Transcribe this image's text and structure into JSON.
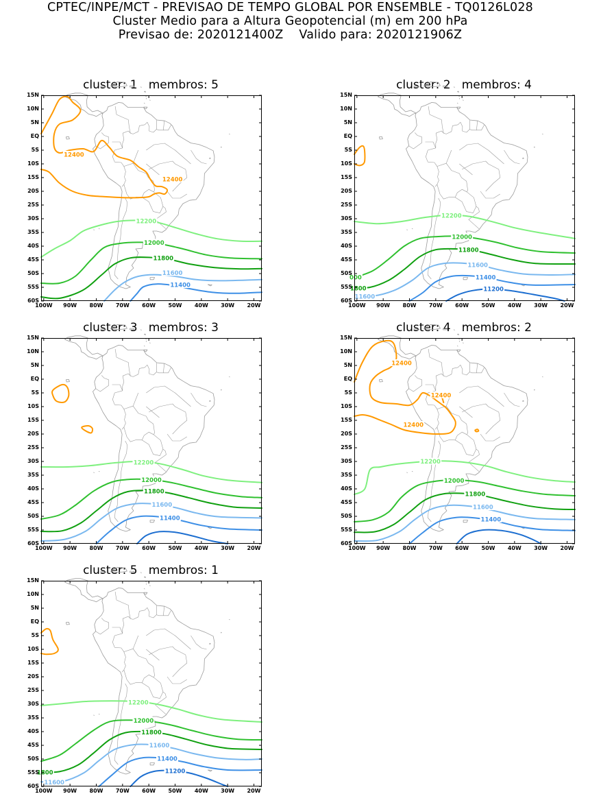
{
  "header": {
    "line1": "CPTEC/INPE/MCT - PREVISAO DE TEMPO GLOBAL POR ENSEMBLE - TQ0126L028",
    "line2": "Cluster Medio para a Altura Geopotencial (m) em 200 hPa",
    "line3": "Previsao de: 2020121400Z    Valido para: 2020121906Z"
  },
  "axes": {
    "lat_labels": [
      "15N",
      "10N",
      "5N",
      "EQ",
      "5S",
      "10S",
      "15S",
      "20S",
      "25S",
      "30S",
      "35S",
      "40S",
      "45S",
      "50S",
      "55S",
      "60S"
    ],
    "lon_labels": [
      "100W",
      "90W",
      "80W",
      "70W",
      "60W",
      "50W",
      "40W",
      "30W",
      "20W"
    ]
  },
  "colors": {
    "c12400": "#ff9900",
    "c12200": "#7ef07e",
    "c12000": "#2fc02f",
    "c11800": "#10a010",
    "c11600": "#7ab8ef",
    "c11400": "#3d8fe6",
    "c11200": "#1c6ed0",
    "coast": "#9a9a9a"
  },
  "panels": [
    {
      "title": "cluster: 1   membros: 5",
      "labels": [
        "12400",
        "12400",
        "12200",
        "12000",
        "11800",
        "11600",
        "11400"
      ]
    },
    {
      "title": "cluster: 2   membros: 4",
      "labels": [
        "12200",
        "12000",
        "11800",
        "11600",
        "11400",
        "11200",
        "000",
        "1800",
        "11600"
      ]
    },
    {
      "title": "cluster: 3   membros: 3",
      "labels": [
        "12200",
        "12000",
        "11800",
        "11600",
        "11400"
      ]
    },
    {
      "title": "cluster: 4   membros: 2",
      "labels": [
        "12400",
        "12400",
        "12400",
        "12200",
        "12000",
        "11800",
        "11600",
        "11400"
      ]
    },
    {
      "title": "cluster: 5   membros: 1",
      "labels": [
        "12200",
        "12000",
        "11800",
        "11600",
        "11400",
        "11200",
        "1800",
        "11600"
      ]
    }
  ]
}
